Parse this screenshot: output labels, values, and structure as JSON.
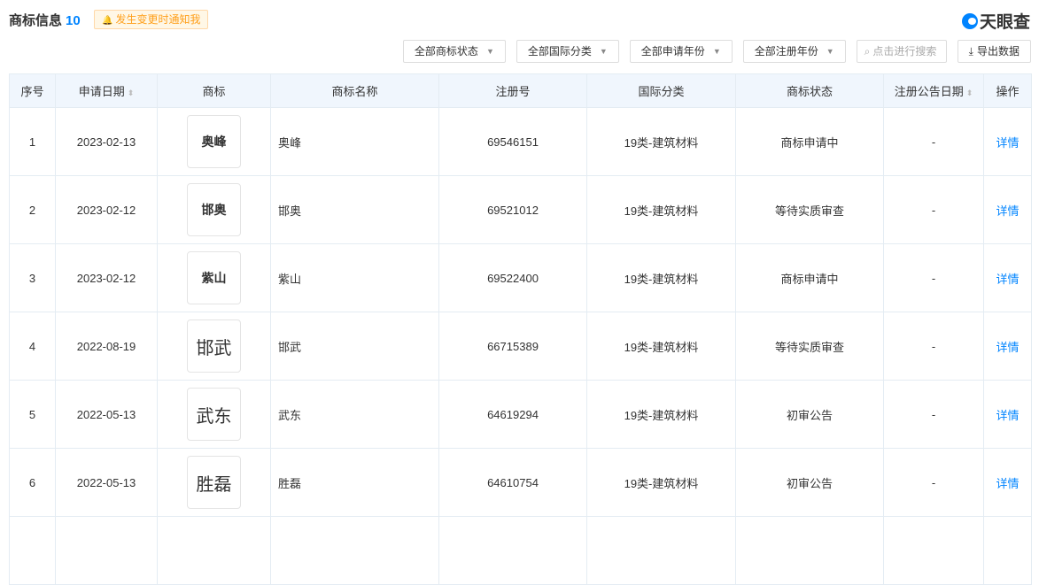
{
  "header": {
    "title": "商标信息",
    "count": "10",
    "notify": "发生变更时通知我",
    "logo": "天眼查"
  },
  "filters": {
    "status": "全部商标状态",
    "intl": "全部国际分类",
    "apply_year": "全部申请年份",
    "reg_year": "全部注册年份",
    "search_placeholder": "点击进行搜索",
    "export": "导出数据"
  },
  "table": {
    "columns": [
      "序号",
      "申请日期",
      "商标",
      "商标名称",
      "注册号",
      "国际分类",
      "商标状态",
      "注册公告日期",
      "操作"
    ],
    "rows": [
      {
        "no": "1",
        "date": "2023-02-13",
        "mark": "奥峰",
        "name": "奥峰",
        "reg": "69546151",
        "cls": "19类-建筑材料",
        "status": "商标申请中",
        "pub": "-",
        "action": "详情"
      },
      {
        "no": "2",
        "date": "2023-02-12",
        "mark": "邯奥",
        "name": "邯奥",
        "reg": "69521012",
        "cls": "19类-建筑材料",
        "status": "等待实质审查",
        "pub": "-",
        "action": "详情"
      },
      {
        "no": "3",
        "date": "2023-02-12",
        "mark": "紫山",
        "name": "紫山",
        "reg": "69522400",
        "cls": "19类-建筑材料",
        "status": "商标申请中",
        "pub": "-",
        "action": "详情"
      },
      {
        "no": "4",
        "date": "2022-08-19",
        "mark": "邯武",
        "name": "邯武",
        "reg": "66715389",
        "cls": "19类-建筑材料",
        "status": "等待实质审查",
        "pub": "-",
        "action": "详情"
      },
      {
        "no": "5",
        "date": "2022-05-13",
        "mark": "武东",
        "name": "武东",
        "reg": "64619294",
        "cls": "19类-建筑材料",
        "status": "初审公告",
        "pub": "-",
        "action": "详情"
      },
      {
        "no": "6",
        "date": "2022-05-13",
        "mark": "胜磊",
        "name": "胜磊",
        "reg": "64610754",
        "cls": "19类-建筑材料",
        "status": "初审公告",
        "pub": "-",
        "action": "详情"
      }
    ]
  }
}
